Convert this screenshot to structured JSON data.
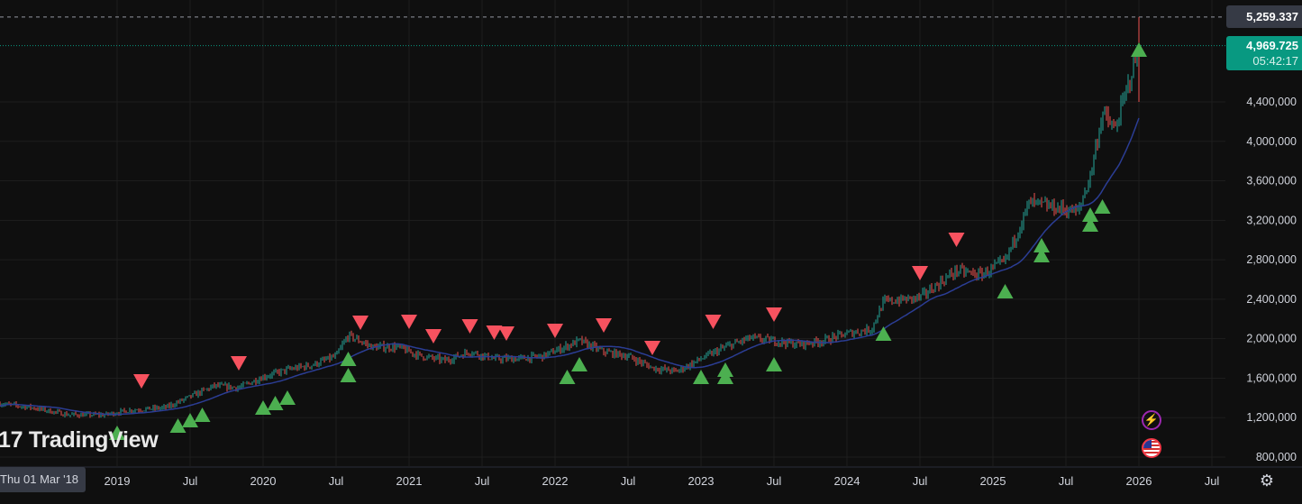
{
  "chart_data": {
    "type": "candlestick",
    "title": "",
    "y_axis": {
      "ticks": [
        "800,000",
        "1,200,000",
        "1,600,000",
        "2,000,000",
        "2,400,000",
        "2,800,000",
        "3,200,000",
        "3,600,000",
        "4,000,000",
        "4,400,000"
      ],
      "tick_values": [
        800000,
        1200000,
        1600000,
        2000000,
        2400000,
        2800000,
        3200000,
        3600000,
        4000000,
        4400000
      ],
      "range": [
        760000,
        5450000
      ]
    },
    "x_axis": {
      "ticks": [
        "2019",
        "Jul",
        "2020",
        "Jul",
        "2021",
        "Jul",
        "2022",
        "Jul",
        "2023",
        "Jul",
        "2024",
        "Jul",
        "2025",
        "Jul",
        "2026",
        "Jul"
      ],
      "tick_dates": [
        "2019-01",
        "2019-07",
        "2020-01",
        "2020-07",
        "2021-01",
        "2021-07",
        "2022-01",
        "2022-07",
        "2023-01",
        "2023-07",
        "2024-01",
        "2024-07",
        "2025-01",
        "2025-07",
        "2026-01",
        "2026-07"
      ],
      "range": [
        "2018-03",
        "2026-11"
      ]
    },
    "grid": true,
    "price_series": [
      [
        "2018-03",
        1348000
      ],
      [
        "2018-06",
        1302000
      ],
      [
        "2018-09",
        1229000
      ],
      [
        "2018-12",
        1229000
      ],
      [
        "2019-02",
        1275000
      ],
      [
        "2019-05",
        1302000
      ],
      [
        "2019-07",
        1412000
      ],
      [
        "2019-09",
        1522000
      ],
      [
        "2019-11",
        1504000
      ],
      [
        "2020-01",
        1613000
      ],
      [
        "2020-03",
        1686000
      ],
      [
        "2020-05",
        1732000
      ],
      [
        "2020-07",
        1823000
      ],
      [
        "2020-08",
        2033000
      ],
      [
        "2020-10",
        1915000
      ],
      [
        "2020-12",
        1915000
      ],
      [
        "2021-02",
        1823000
      ],
      [
        "2021-04",
        1778000
      ],
      [
        "2021-06",
        1869000
      ],
      [
        "2021-08",
        1796000
      ],
      [
        "2021-10",
        1796000
      ],
      [
        "2021-12",
        1823000
      ],
      [
        "2022-03",
        1979000
      ],
      [
        "2022-05",
        1869000
      ],
      [
        "2022-07",
        1823000
      ],
      [
        "2022-09",
        1705000
      ],
      [
        "2022-11",
        1668000
      ],
      [
        "2023-01",
        1796000
      ],
      [
        "2023-03",
        1915000
      ],
      [
        "2023-05",
        2006000
      ],
      [
        "2023-07",
        1979000
      ],
      [
        "2023-09",
        1942000
      ],
      [
        "2023-11",
        1979000
      ],
      [
        "2024-01",
        2052000
      ],
      [
        "2024-03",
        2097000
      ],
      [
        "2024-04",
        2372000
      ],
      [
        "2024-07",
        2417000
      ],
      [
        "2024-10",
        2691000
      ],
      [
        "2024-12",
        2646000
      ],
      [
        "2025-02",
        2783000
      ],
      [
        "2025-04",
        3377000
      ],
      [
        "2025-06",
        3331000
      ],
      [
        "2025-08",
        3285000
      ],
      [
        "2025-09",
        3651000
      ],
      [
        "2025-10",
        4290000
      ],
      [
        "2025-11",
        4108000
      ],
      [
        "2025-12",
        4519000
      ],
      [
        "2026-01",
        4969725
      ]
    ],
    "moving_average": {
      "color": "#2b3d94"
    },
    "sell_signals": [
      [
        "2019-03",
        1568000
      ],
      [
        "2019-11",
        1750000
      ],
      [
        "2020-09",
        2161000
      ],
      [
        "2021-01",
        2171000
      ],
      [
        "2021-03",
        2024000
      ],
      [
        "2021-06",
        2125000
      ],
      [
        "2021-08",
        2061000
      ],
      [
        "2021-09",
        2052000
      ],
      [
        "2022-01",
        2079000
      ],
      [
        "2022-05",
        2134000
      ],
      [
        "2022-09",
        1906000
      ],
      [
        "2023-02",
        2171000
      ],
      [
        "2023-07",
        2244000
      ],
      [
        "2024-07",
        2664000
      ],
      [
        "2024-10",
        3002000
      ]
    ],
    "buy_signals": [
      [
        "2019-01",
        1047000
      ],
      [
        "2019-06",
        1120000
      ],
      [
        "2019-07",
        1175000
      ],
      [
        "2019-08",
        1229000
      ],
      [
        "2020-01",
        1302000
      ],
      [
        "2020-02",
        1348000
      ],
      [
        "2020-03",
        1403000
      ],
      [
        "2020-08",
        1631000
      ],
      [
        "2020-08",
        1796000
      ],
      [
        "2022-02",
        1613000
      ],
      [
        "2022-03",
        1741000
      ],
      [
        "2023-01",
        1613000
      ],
      [
        "2023-03",
        1613000
      ],
      [
        "2023-03",
        1686000
      ],
      [
        "2023-07",
        1741000
      ],
      [
        "2024-04",
        2052000
      ],
      [
        "2025-02",
        2481000
      ],
      [
        "2025-05",
        2847000
      ],
      [
        "2025-05",
        2947000
      ],
      [
        "2025-09",
        3157000
      ],
      [
        "2025-09",
        3258000
      ],
      [
        "2025-10",
        3340000
      ],
      [
        "2026-01",
        4930000
      ]
    ],
    "high_price": 5259337,
    "last_price": 4969725
  },
  "colors": {
    "up": "#26a69a",
    "down": "#ef5350",
    "buy": "#4caf50",
    "sell": "#f7525f",
    "last_price_bg": "#089981",
    "background": "#0f0f0f"
  },
  "labels": {
    "high_price": "5,259.337",
    "last_price": "4,969.725",
    "countdown": "05:42:17",
    "cursor_date": "Thu 01 Mar '18",
    "logo": "TradingView"
  },
  "icons": [
    "lightning-icon",
    "us-flag-icon",
    "settings-icon"
  ]
}
